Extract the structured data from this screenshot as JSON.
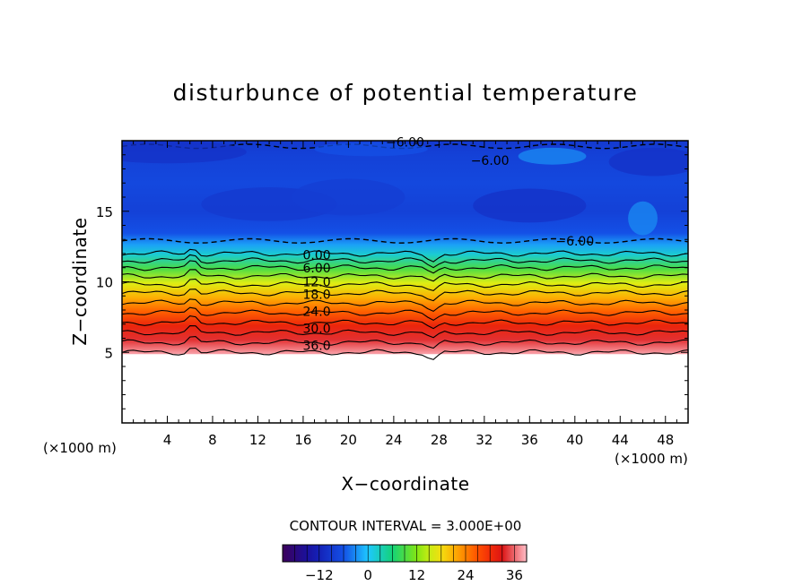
{
  "chart_data": {
    "type": "heatmap",
    "title": "disturbunce of potential temperature",
    "xlabel": "X−coordinate",
    "ylabel": "Z−coordinate",
    "x_unit_left": "(×1000 m)",
    "x_unit_right": "(×1000 m)",
    "xlim": [
      0,
      50
    ],
    "ylim": [
      0,
      20
    ],
    "x_ticks": [
      4,
      8,
      12,
      16,
      20,
      24,
      28,
      32,
      36,
      40,
      44,
      48
    ],
    "x_tick_labels": [
      "4",
      "8",
      "12",
      "16",
      "20",
      "24",
      "28",
      "32",
      "36",
      "40",
      "44",
      "48"
    ],
    "y_ticks": [
      5,
      10,
      15
    ],
    "y_tick_labels": [
      "5",
      "10",
      "15"
    ],
    "contour_interval_text": "CONTOUR INTERVAL = 3.000E+00",
    "contour_labels": [
      {
        "text": "−6.00",
        "x": 25.0,
        "z": 19.9
      },
      {
        "text": "−6.00",
        "x": 32.5,
        "z": 18.6
      },
      {
        "text": "−6.00",
        "x": 40.0,
        "z": 12.9
      },
      {
        "text": "0.00",
        "x": 17.2,
        "z": 11.9
      },
      {
        "text": "6.00",
        "x": 17.2,
        "z": 11.0
      },
      {
        "text": "12.0",
        "x": 17.2,
        "z": 10.0
      },
      {
        "text": "18.0",
        "x": 17.2,
        "z": 9.1
      },
      {
        "text": "24.0",
        "x": 17.2,
        "z": 7.9
      },
      {
        "text": "30.0",
        "x": 17.2,
        "z": 6.7
      },
      {
        "text": "36.0",
        "x": 17.2,
        "z": 5.5
      }
    ],
    "field_profile_z": [
      5,
      6,
      7,
      8,
      9,
      10,
      11,
      12,
      12.7,
      13.5,
      15,
      17,
      19,
      20
    ],
    "field_profile_value": [
      38,
      34,
      31,
      26,
      21,
      16,
      9,
      2,
      -2,
      -6,
      -8,
      -7,
      -8,
      -9
    ],
    "colorbar": {
      "range": [
        -21,
        39
      ],
      "ticks": [
        -12,
        0,
        12,
        24,
        36
      ],
      "tick_labels": [
        "−12",
        "0",
        "12",
        "24",
        "36"
      ]
    }
  }
}
